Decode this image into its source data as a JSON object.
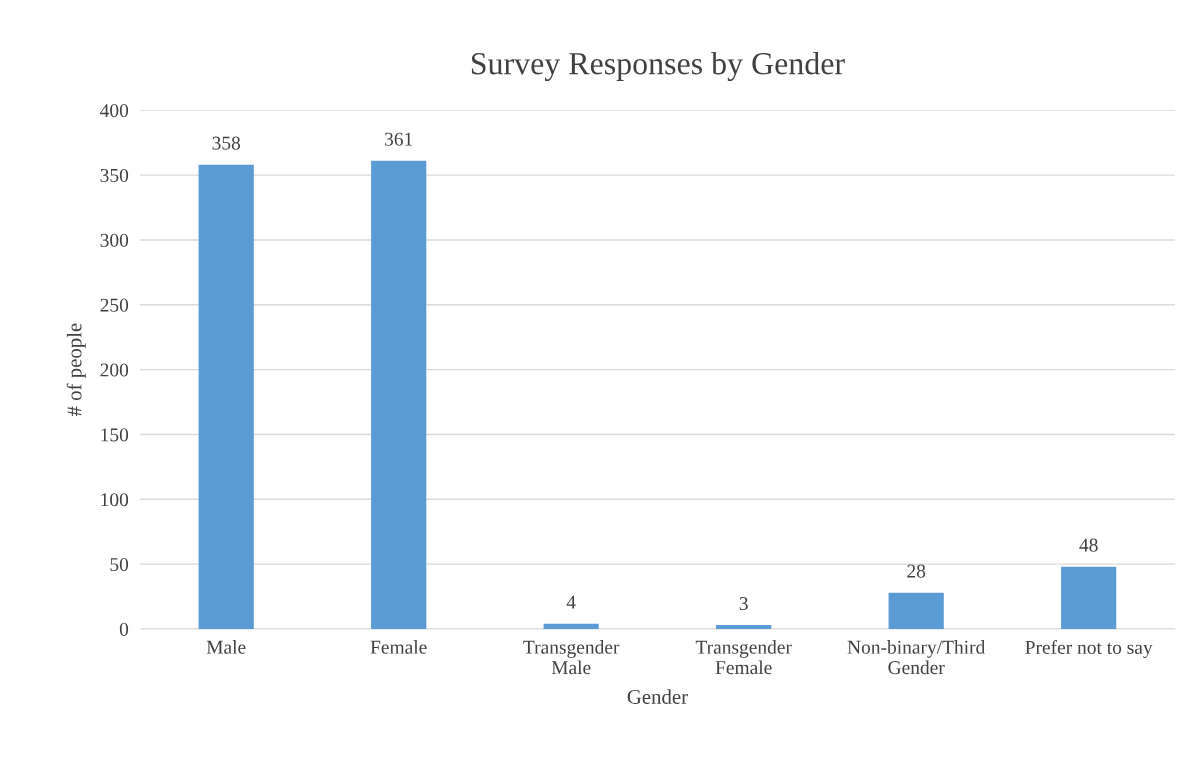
{
  "chart_data": {
    "type": "bar",
    "title": "Survey Responses by Gender",
    "xlabel": "Gender",
    "ylabel": "# of people",
    "categories": [
      "Male",
      "Female",
      "Transgender\nMale",
      "Transgender\nFemale",
      "Non-binary/Third\nGender",
      "Prefer not to say"
    ],
    "values": [
      358,
      361,
      4,
      3,
      28,
      48
    ],
    "color": "#5b9bd5",
    "ylim": [
      0,
      400
    ],
    "yticks": [
      0,
      50,
      100,
      150,
      200,
      250,
      300,
      350,
      400
    ],
    "grid": "y",
    "data_labels": true
  }
}
